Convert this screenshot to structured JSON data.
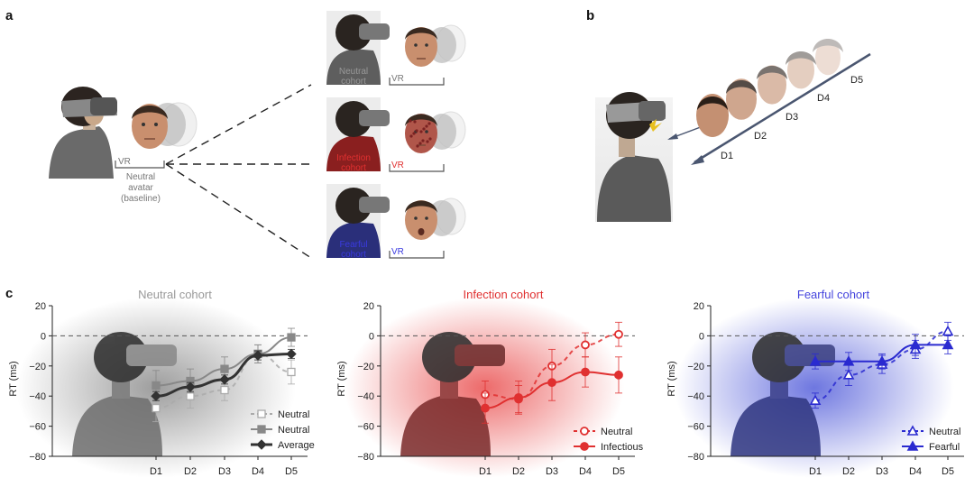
{
  "panels": {
    "a": {
      "label": "a",
      "baseline_vr": "VR",
      "baseline_caption": [
        "Neutral",
        "avatar",
        "(baseline)"
      ],
      "cohorts": [
        {
          "label": [
            "Neutral",
            "cohort"
          ],
          "vr": "VR",
          "color": "#999999",
          "shirt": "#5e5e5e",
          "face": "neutral"
        },
        {
          "label": [
            "Infection",
            "cohort"
          ],
          "vr": "VR",
          "color": "#e03030",
          "shirt": "#8a1f1f",
          "face": "infectious"
        },
        {
          "label": [
            "Fearful",
            "cohort"
          ],
          "vr": "VR",
          "color": "#3a3ae0",
          "shirt": "#2a2f7a",
          "face": "fearful"
        }
      ]
    },
    "b": {
      "label": "b",
      "distances": [
        "D1",
        "D2",
        "D3",
        "D4",
        "D5"
      ]
    },
    "c": {
      "label": "c"
    }
  },
  "chart_data": [
    {
      "type": "line",
      "title": "Neutral cohort",
      "title_color": "#999999",
      "bg_color": "#9a9a9a",
      "ylabel": "RT (ms)",
      "ylim": [
        -80,
        20
      ],
      "yticks": [
        "20",
        "0",
        "−20",
        "−40",
        "−60",
        "−80"
      ],
      "categories": [
        "D1",
        "D2",
        "D3",
        "D4",
        "D5"
      ],
      "series": [
        {
          "name": "Neutral",
          "color": "#aaaaaa",
          "marker": "square-open",
          "dash": true,
          "values": [
            -48,
            -40,
            -36,
            -12,
            -24
          ],
          "err": [
            9,
            8,
            7,
            6,
            8
          ]
        },
        {
          "name": "Neutral",
          "color": "#888888",
          "marker": "square",
          "dash": false,
          "values": [
            -33,
            -30,
            -22,
            -12,
            -1
          ],
          "err": [
            10,
            8,
            8,
            6,
            6
          ]
        },
        {
          "name": "Average",
          "color": "#333333",
          "marker": "diamond",
          "dash": false,
          "values": [
            -40,
            -34,
            -29,
            -13,
            -12
          ],
          "err": [
            3,
            3,
            3,
            3,
            3
          ]
        }
      ]
    },
    {
      "type": "line",
      "title": "Infection cohort",
      "title_color": "#e03030",
      "bg_color": "#e84545",
      "ylabel": "RT (ms)",
      "ylim": [
        -80,
        20
      ],
      "yticks": [
        "20",
        "0",
        "−20",
        "−40",
        "−60",
        "−80"
      ],
      "categories": [
        "D1",
        "D2",
        "D3",
        "D4",
        "D5"
      ],
      "series": [
        {
          "name": "Neutral",
          "color": "#e03030",
          "marker": "circle-open",
          "dash": true,
          "values": [
            -39,
            -42,
            -20,
            -6,
            1
          ],
          "err": [
            9,
            9,
            11,
            8,
            8
          ]
        },
        {
          "name": "Infectious",
          "color": "#e03030",
          "marker": "circle",
          "dash": false,
          "values": [
            -48,
            -41,
            -31,
            -24,
            -26
          ],
          "err": [
            10,
            11,
            12,
            10,
            12
          ]
        }
      ]
    },
    {
      "type": "line",
      "title": "Fearful cohort",
      "title_color": "#4444dd",
      "bg_color": "#4a55d8",
      "ylabel": "RT (ms)",
      "ylim": [
        -80,
        20
      ],
      "yticks": [
        "20",
        "0",
        "−20",
        "−40",
        "−60",
        "−80"
      ],
      "categories": [
        "D1",
        "D2",
        "D3",
        "D4",
        "D5"
      ],
      "series": [
        {
          "name": "Neutral",
          "color": "#2a2ad0",
          "marker": "triangle-open",
          "dash": true,
          "values": [
            -43,
            -26,
            -19,
            -9,
            3
          ],
          "err": [
            5,
            7,
            6,
            6,
            6
          ]
        },
        {
          "name": "Fearful",
          "color": "#2a2ad0",
          "marker": "triangle",
          "dash": false,
          "values": [
            -17,
            -17,
            -17,
            -6,
            -6
          ],
          "err": [
            5,
            6,
            5,
            7,
            6
          ]
        }
      ]
    }
  ]
}
